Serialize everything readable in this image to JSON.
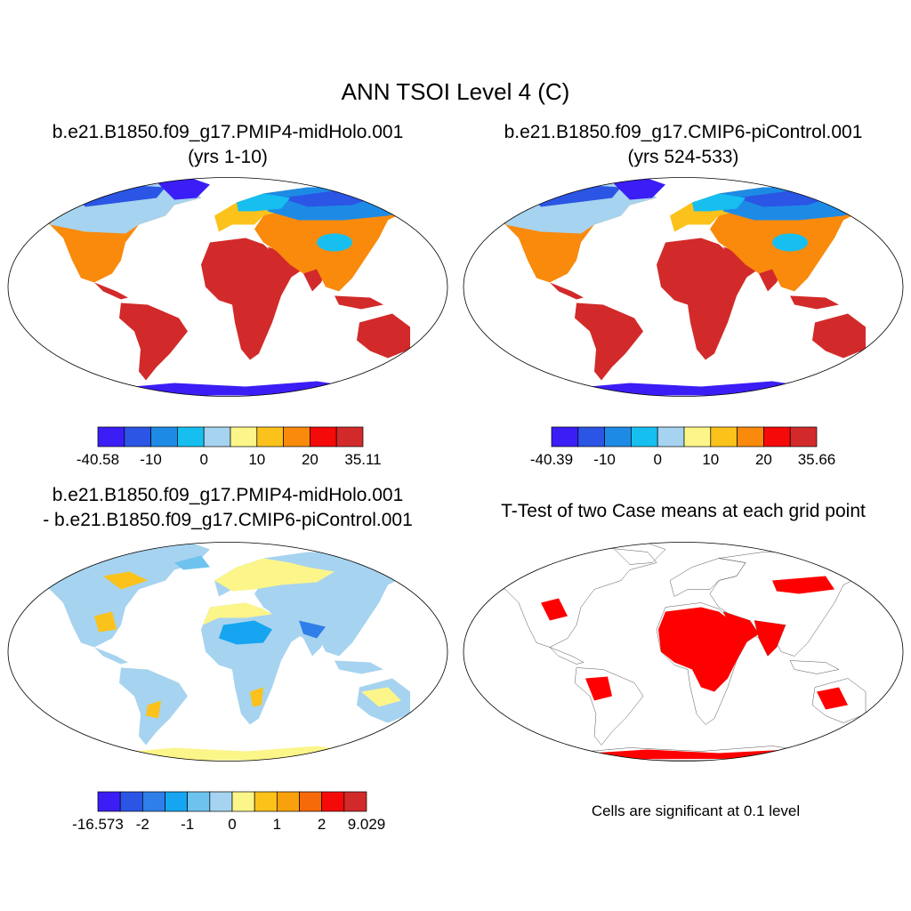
{
  "figure_title": "ANN TSOI Level 4 (C)",
  "panels": [
    {
      "id": "case1",
      "title_line1": "b.e21.B1850.f09_g17.PMIP4-midHolo.001",
      "title_line2": "(yrs 1-10)",
      "colorbar": {
        "colors": [
          "#3b1ef5",
          "#2b55e4",
          "#1d8be6",
          "#16bff0",
          "#a6d3ef",
          "#fcf58a",
          "#fbc21b",
          "#f98a0c",
          "#f50a0a",
          "#d22a2a"
        ],
        "labels": [
          "-40.58",
          "-10",
          "0",
          "10",
          "20",
          "35.11"
        ],
        "min": -40.58,
        "max": 35.11
      }
    },
    {
      "id": "case2",
      "title_line1": "b.e21.B1850.f09_g17.CMIP6-piControl.001",
      "title_line2": "(yrs 524-533)",
      "colorbar": {
        "colors": [
          "#3b1ef5",
          "#2b55e4",
          "#1d8be6",
          "#16bff0",
          "#a6d3ef",
          "#fcf58a",
          "#fbc21b",
          "#f98a0c",
          "#f50a0a",
          "#d22a2a"
        ],
        "labels": [
          "-40.39",
          "-10",
          "0",
          "10",
          "20",
          "35.66"
        ],
        "min": -40.39,
        "max": 35.66
      }
    },
    {
      "id": "difference",
      "title_line1": "b.e21.B1850.f09_g17.PMIP4-midHolo.001",
      "title_line2": "- b.e21.B1850.f09_g17.CMIP6-piControl.001",
      "colorbar": {
        "colors": [
          "#3b1ef5",
          "#2b55e4",
          "#2f7ee9",
          "#16a5f0",
          "#6ec3ee",
          "#a6d3ef",
          "#fcf58a",
          "#fbc21b",
          "#f9a10c",
          "#f76a0a",
          "#f50a0a",
          "#d22a2a"
        ],
        "labels": [
          "-16.573",
          "-2",
          "-1",
          "0",
          "1",
          "2",
          "9.029"
        ],
        "min": -16.573,
        "max": 9.029
      }
    },
    {
      "id": "ttest",
      "title_line1": "T-Test of two Case means at each grid point",
      "note": "Cells are significant at 0.1 level",
      "significant_color": "#ff0000"
    }
  ]
}
